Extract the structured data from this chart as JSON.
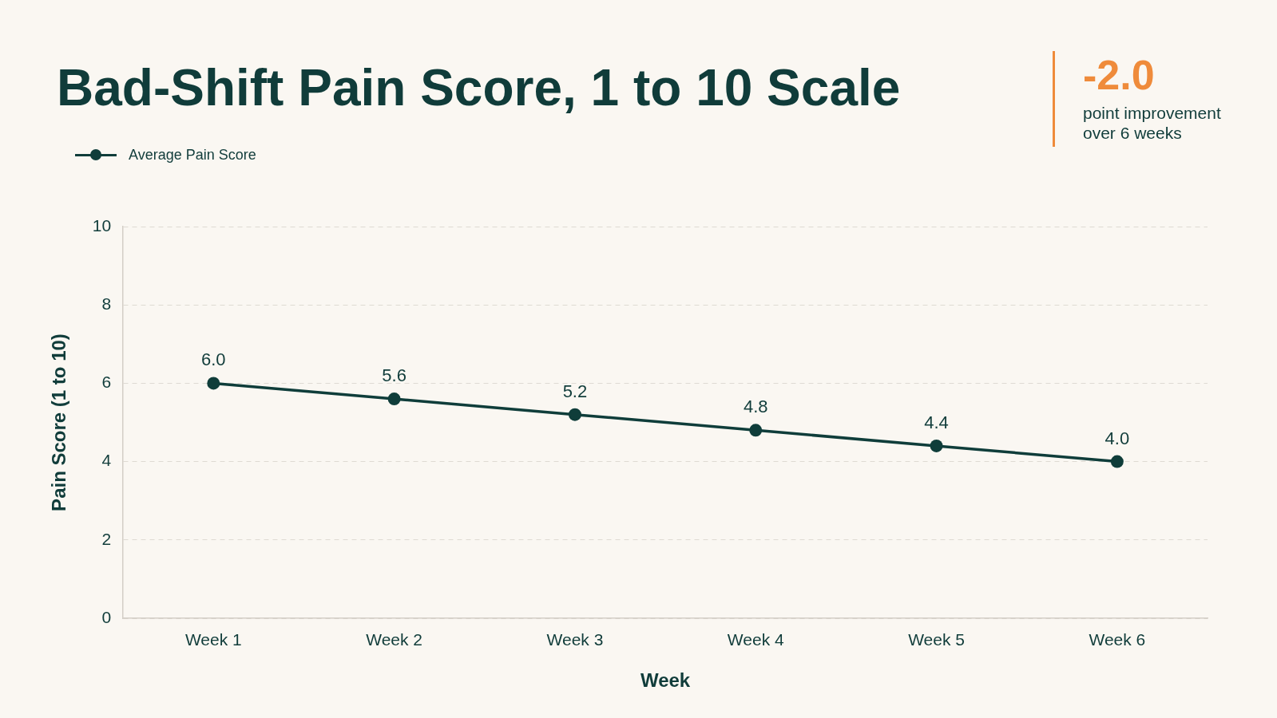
{
  "chart_data": {
    "type": "line",
    "title": "Bad-Shift Pain Score, 1 to 10 Scale",
    "xlabel": "Week",
    "ylabel": "Pain Score (1 to 10)",
    "annotations": [
      "-2.0",
      "point improvement over 6 weeks"
    ],
    "categories": [
      "Week 1",
      "Week 2",
      "Week 3",
      "Week 4",
      "Week 5",
      "Week 6"
    ],
    "series": [
      {
        "name": "Average Pain Score",
        "color": "#0f3d3a",
        "values": [
          6,
          5.6,
          5.2,
          4.8,
          4.4,
          4
        ],
        "value_labels": [
          "6.0",
          "5.6",
          "5.2",
          "4.8",
          "4.4",
          "4.0"
        ]
      }
    ],
    "ylim": [
      0,
      10
    ],
    "yticks": [
      0,
      2,
      4,
      6,
      8,
      10
    ],
    "grid": "y",
    "legend": "top left",
    "marker": "circle",
    "line_style": "solid"
  }
}
